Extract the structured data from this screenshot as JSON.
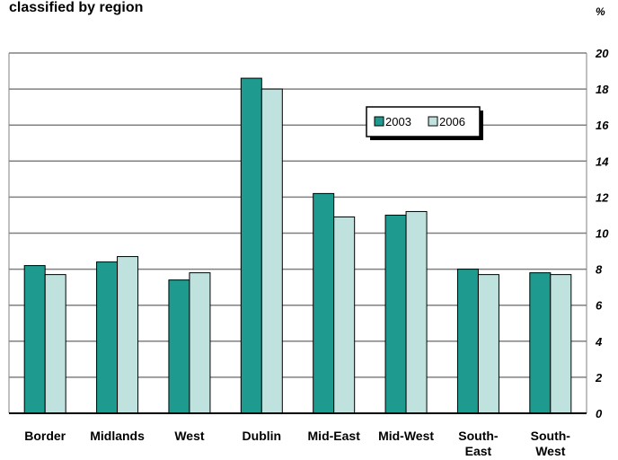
{
  "header": {
    "title": "classified by region",
    "unit": "%"
  },
  "chart_data": {
    "type": "bar",
    "title": "classified by region",
    "ylabel": "%",
    "categories": [
      [
        "Border"
      ],
      [
        "Midlands"
      ],
      [
        "West"
      ],
      [
        "Dublin"
      ],
      [
        "Mid-East"
      ],
      [
        "Mid-West"
      ],
      [
        "South-",
        "East"
      ],
      [
        "South-",
        "West"
      ]
    ],
    "series": [
      {
        "name": "2003",
        "color": "#1f9a8f",
        "values": [
          8.2,
          8.4,
          7.4,
          18.6,
          12.2,
          11.0,
          8.0,
          7.8
        ]
      },
      {
        "name": "2006",
        "color": "#bfe2df",
        "values": [
          7.7,
          8.7,
          7.8,
          18.0,
          10.9,
          11.2,
          7.7,
          7.7
        ]
      }
    ],
    "ylim": [
      0,
      20
    ],
    "yticks": [
      0,
      2,
      4,
      6,
      8,
      10,
      12,
      14,
      16,
      18,
      20
    ],
    "grid": true,
    "legend_position": "top-right"
  }
}
